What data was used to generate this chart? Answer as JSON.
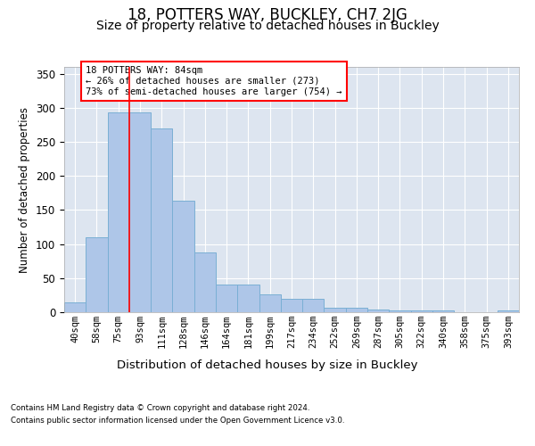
{
  "title": "18, POTTERS WAY, BUCKLEY, CH7 2JG",
  "subtitle": "Size of property relative to detached houses in Buckley",
  "xlabel": "Distribution of detached houses by size in Buckley",
  "ylabel": "Number of detached properties",
  "categories": [
    "40sqm",
    "58sqm",
    "75sqm",
    "93sqm",
    "111sqm",
    "128sqm",
    "146sqm",
    "164sqm",
    "181sqm",
    "199sqm",
    "217sqm",
    "234sqm",
    "252sqm",
    "269sqm",
    "287sqm",
    "305sqm",
    "322sqm",
    "340sqm",
    "358sqm",
    "375sqm",
    "393sqm"
  ],
  "values": [
    15,
    110,
    293,
    293,
    270,
    163,
    88,
    41,
    41,
    26,
    20,
    19,
    7,
    6,
    4,
    2,
    3,
    2,
    0,
    0,
    3
  ],
  "bar_color": "#aec6e8",
  "bar_edge_color": "#7aafd4",
  "property_line_bin": 2.5,
  "annotation_text": "18 POTTERS WAY: 84sqm\n← 26% of detached houses are smaller (273)\n73% of semi-detached houses are larger (754) →",
  "footnote1": "Contains HM Land Registry data © Crown copyright and database right 2024.",
  "footnote2": "Contains public sector information licensed under the Open Government Licence v3.0.",
  "plot_bg_color": "#dde5f0",
  "ylim": [
    0,
    360
  ],
  "title_fontsize": 12,
  "subtitle_fontsize": 10,
  "tick_fontsize": 7.5,
  "ylabel_fontsize": 8.5,
  "xlabel_fontsize": 9.5
}
